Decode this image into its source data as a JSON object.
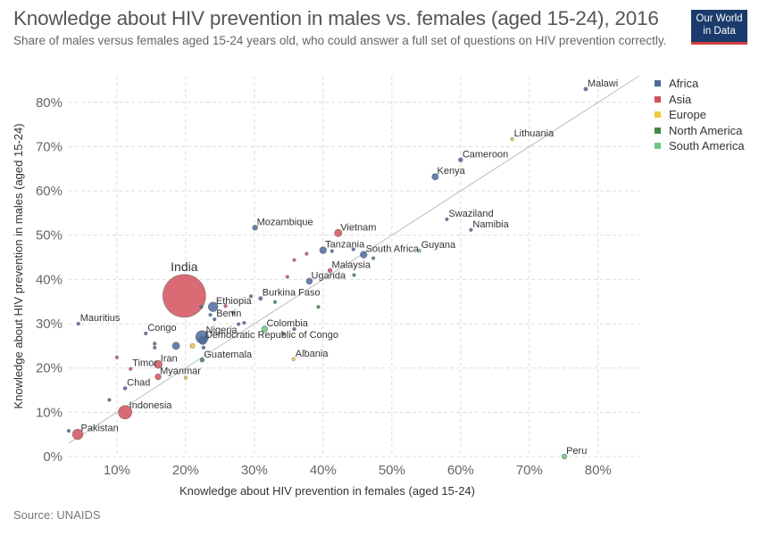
{
  "header": {
    "title": "Knowledge about HIV prevention in males vs. females (aged 15-24), 2016",
    "subtitle": "Share of males versus females aged 15-24 years old, who could answer a full set of questions on HIV prevention correctly.",
    "logo_line1": "Our World",
    "logo_line2": "in Data"
  },
  "footer": {
    "source": "Source: UNAIDS"
  },
  "colors": {
    "Africa": "#4c6a9c",
    "Asia": "#d4515c",
    "Europe": "#f5c836",
    "North America": "#3e8a43",
    "South America": "#6cc780",
    "grid": "#dddddd",
    "diagonal": "#bdbdbd"
  },
  "legend": [
    {
      "label": "Africa",
      "region": "Africa"
    },
    {
      "label": "Asia",
      "region": "Asia"
    },
    {
      "label": "Europe",
      "region": "Europe"
    },
    {
      "label": "North America",
      "region": "North America"
    },
    {
      "label": "South America",
      "region": "South America"
    }
  ],
  "chart_data": {
    "type": "scatter",
    "title": "Knowledge about HIV prevention in males vs. females (aged 15-24), 2016",
    "xlabel": "Knowledge about HIV prevention in females (aged 15-24)",
    "ylabel": "Knowledge about HIV prevention in males (aged 15-24)",
    "xlim": [
      3,
      86
    ],
    "ylim": [
      0,
      86
    ],
    "x_ticks": [
      10,
      20,
      30,
      40,
      50,
      60,
      70,
      80
    ],
    "y_ticks": [
      0,
      10,
      20,
      30,
      40,
      50,
      60,
      70,
      80
    ],
    "tick_suffix": "%",
    "grid": true,
    "legend_position": "right",
    "size_variable": "population",
    "points": [
      {
        "label": "India",
        "x": 19.8,
        "y": 36.3,
        "region": "Asia",
        "size": 100
      },
      {
        "label": "Pakistan",
        "x": 4.3,
        "y": 5.0,
        "region": "Asia",
        "size": 6
      },
      {
        "label": "Indonesia",
        "x": 11.2,
        "y": 10.0,
        "region": "Asia",
        "size": 10
      },
      {
        "label": "Vietnam",
        "x": 42.2,
        "y": 50.5,
        "region": "Asia",
        "size": 3
      },
      {
        "label": "Malaysia",
        "x": 41.0,
        "y": 42.0,
        "region": "Asia",
        "size": 1
      },
      {
        "label": "Iran",
        "x": 16.0,
        "y": 20.8,
        "region": "Asia",
        "size": 3.5
      },
      {
        "label": "Myanmar",
        "x": 16.0,
        "y": 18.0,
        "region": "Asia",
        "size": 2
      },
      {
        "label": "Timor",
        "x": 12.0,
        "y": 19.8,
        "region": "Asia",
        "size": 0.1
      },
      {
        "label": "",
        "x": 10.0,
        "y": 22.4,
        "region": "Asia",
        "size": 0.5
      },
      {
        "label": "",
        "x": 25.8,
        "y": 34.0,
        "region": "Asia",
        "size": 0.6
      },
      {
        "label": "",
        "x": 37.6,
        "y": 45.8,
        "region": "Asia",
        "size": 0.3
      },
      {
        "label": "",
        "x": 35.8,
        "y": 44.4,
        "region": "Asia",
        "size": 0.1
      },
      {
        "label": "",
        "x": 34.8,
        "y": 40.6,
        "region": "Asia",
        "size": 0.05
      },
      {
        "label": "Ethiopia",
        "x": 24.0,
        "y": 33.8,
        "region": "Africa",
        "size": 5
      },
      {
        "label": "Nigeria",
        "x": 22.4,
        "y": 27.0,
        "region": "Africa",
        "size": 9
      },
      {
        "label": "Democratic Republic of Congo",
        "x": 22.5,
        "y": 26.2,
        "region": "Africa",
        "size": 3.5
      },
      {
        "label": "Mozambique",
        "x": 30.1,
        "y": 51.7,
        "region": "Africa",
        "size": 1.5
      },
      {
        "label": "Tanzania",
        "x": 40.0,
        "y": 46.6,
        "region": "Africa",
        "size": 2.6
      },
      {
        "label": "South Africa",
        "x": 45.9,
        "y": 45.6,
        "region": "Africa",
        "size": 2.6
      },
      {
        "label": "Uganda",
        "x": 38.0,
        "y": 39.6,
        "region": "Africa",
        "size": 2.1
      },
      {
        "label": "Burkina Faso",
        "x": 30.9,
        "y": 35.7,
        "region": "Africa",
        "size": 0.8
      },
      {
        "label": "Benin",
        "x": 24.2,
        "y": 31.0,
        "region": "Africa",
        "size": 0.5
      },
      {
        "label": "Kenya",
        "x": 56.3,
        "y": 63.2,
        "region": "Africa",
        "size": 2.3
      },
      {
        "label": "Cameroon",
        "x": 60.0,
        "y": 67.0,
        "region": "Africa",
        "size": 1
      },
      {
        "label": "Malawi",
        "x": 78.2,
        "y": 83.0,
        "region": "Africa",
        "size": 0.8
      },
      {
        "label": "Swaziland",
        "x": 58.0,
        "y": 53.6,
        "region": "Africa",
        "size": 0.05
      },
      {
        "label": "Namibia",
        "x": 61.5,
        "y": 51.2,
        "region": "Africa",
        "size": 0.1
      },
      {
        "label": "Mauritius",
        "x": 4.4,
        "y": 30.0,
        "region": "Africa",
        "size": 0.1
      },
      {
        "label": "Congo",
        "x": 14.2,
        "y": 27.8,
        "region": "Africa",
        "size": 0.5
      },
      {
        "label": "Chad",
        "x": 11.2,
        "y": 15.4,
        "region": "Africa",
        "size": 0.7
      },
      {
        "label": "",
        "x": 18.6,
        "y": 25.0,
        "region": "Africa",
        "size": 3
      },
      {
        "label": "",
        "x": 15.5,
        "y": 25.5,
        "region": "Africa",
        "size": 0.3
      },
      {
        "label": "",
        "x": 15.5,
        "y": 24.6,
        "region": "Africa",
        "size": 0.3
      },
      {
        "label": "",
        "x": 22.6,
        "y": 24.6,
        "region": "Africa",
        "size": 0.6
      },
      {
        "label": "",
        "x": 23.6,
        "y": 32.0,
        "region": "Africa",
        "size": 0.3
      },
      {
        "label": "",
        "x": 22.3,
        "y": 33.8,
        "region": "Africa",
        "size": 0.2
      },
      {
        "label": "",
        "x": 26.9,
        "y": 32.5,
        "region": "Africa",
        "size": 0.2
      },
      {
        "label": "",
        "x": 27.7,
        "y": 29.9,
        "region": "Africa",
        "size": 0.1
      },
      {
        "label": "",
        "x": 28.5,
        "y": 30.2,
        "region": "Africa",
        "size": 0.1
      },
      {
        "label": "",
        "x": 29.5,
        "y": 36.2,
        "region": "Africa",
        "size": 0.2
      },
      {
        "label": "",
        "x": 35.8,
        "y": 28.8,
        "region": "Africa",
        "size": 0.2
      },
      {
        "label": "",
        "x": 41.3,
        "y": 46.4,
        "region": "Africa",
        "size": 0.2
      },
      {
        "label": "",
        "x": 44.4,
        "y": 46.8,
        "region": "Africa",
        "size": 0.2
      },
      {
        "label": "",
        "x": 8.9,
        "y": 12.8,
        "region": "Africa",
        "size": 0.05
      },
      {
        "label": "",
        "x": 3.0,
        "y": 5.8,
        "region": "Africa",
        "size": 0.05
      },
      {
        "label": "Lithuania",
        "x": 67.5,
        "y": 71.7,
        "region": "Europe",
        "size": 0.3
      },
      {
        "label": "Albania",
        "x": 35.7,
        "y": 22.0,
        "region": "Europe",
        "size": 0.3
      },
      {
        "label": "",
        "x": 21.0,
        "y": 25.0,
        "region": "Europe",
        "size": 1.2
      },
      {
        "label": "",
        "x": 20.0,
        "y": 17.8,
        "region": "Europe",
        "size": 0.05
      },
      {
        "label": "Guatemala",
        "x": 22.4,
        "y": 21.8,
        "region": "North America",
        "size": 1
      },
      {
        "label": "",
        "x": 39.3,
        "y": 33.8,
        "region": "North America",
        "size": 0.05
      },
      {
        "label": "",
        "x": 33.0,
        "y": 34.9,
        "region": "North America",
        "size": 0.05
      },
      {
        "label": "",
        "x": 44.5,
        "y": 41.0,
        "region": "North America",
        "size": 0.05
      },
      {
        "label": "",
        "x": 47.3,
        "y": 44.8,
        "region": "North America",
        "size": 0.05
      },
      {
        "label": "",
        "x": 34.2,
        "y": 27.7,
        "region": "North America",
        "size": 0.05
      },
      {
        "label": "Colombia",
        "x": 31.5,
        "y": 28.8,
        "region": "South America",
        "size": 2
      },
      {
        "label": "Guyana",
        "x": 54.0,
        "y": 46.5,
        "region": "South America",
        "size": 0.1
      },
      {
        "label": "Peru",
        "x": 75.1,
        "y": 0.0,
        "region": "South America",
        "size": 1.4
      }
    ]
  }
}
